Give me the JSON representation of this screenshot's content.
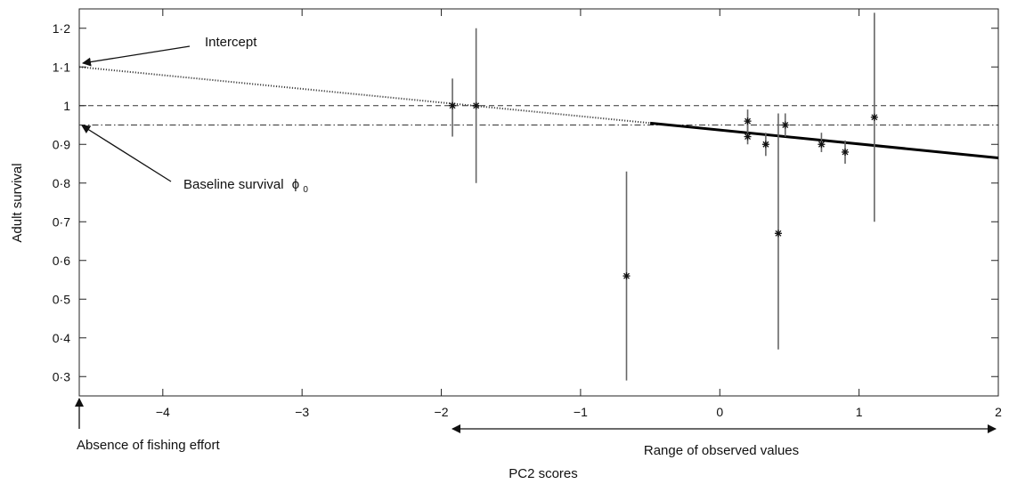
{
  "chart_data": {
    "type": "scatter",
    "xlabel": "PC2 scores",
    "ylabel": "Adult survival",
    "xlim": [
      -4.6,
      2.0
    ],
    "ylim": [
      0.25,
      1.25
    ],
    "x_ticks": [
      -4,
      -3,
      -2,
      -1,
      0,
      1,
      2
    ],
    "x_tick_labels": [
      "−4",
      "−3",
      "−2",
      "−1",
      "0",
      "1",
      "2"
    ],
    "y_ticks": [
      0.3,
      0.4,
      0.5,
      0.6,
      0.7,
      0.8,
      0.9,
      1.0,
      1.1,
      1.2
    ],
    "y_tick_labels": [
      "0·3",
      "0·4",
      "0·5",
      "0·6",
      "0·7",
      "0·8",
      "0·9",
      "1",
      "1·1",
      "1·2"
    ],
    "grid": false,
    "points": [
      {
        "x": -1.92,
        "y": 1.0,
        "low": 0.92,
        "high": 1.07
      },
      {
        "x": -1.75,
        "y": 1.0,
        "low": 0.8,
        "high": 1.2
      },
      {
        "x": -0.67,
        "y": 0.56,
        "low": 0.29,
        "high": 0.83
      },
      {
        "x": 0.2,
        "y": 0.96,
        "low": 0.93,
        "high": 0.99
      },
      {
        "x": 0.2,
        "y": 0.92,
        "low": 0.9,
        "high": 0.95
      },
      {
        "x": 0.33,
        "y": 0.9,
        "low": 0.87,
        "high": 0.93
      },
      {
        "x": 0.42,
        "y": 0.67,
        "low": 0.37,
        "high": 0.98
      },
      {
        "x": 0.47,
        "y": 0.95,
        "low": 0.92,
        "high": 0.98
      },
      {
        "x": 0.73,
        "y": 0.9,
        "low": 0.88,
        "high": 0.93
      },
      {
        "x": 0.9,
        "y": 0.88,
        "low": 0.85,
        "high": 0.91
      },
      {
        "x": 1.11,
        "y": 0.97,
        "low": 0.7,
        "high": 1.24
      }
    ],
    "reference_lines": [
      {
        "y": 1.0,
        "style": "dashed"
      },
      {
        "y": 0.95,
        "style": "dash-dot"
      }
    ],
    "regression": {
      "dotted": {
        "x": [
          -4.6,
          -0.5
        ],
        "y": [
          1.1,
          0.955
        ]
      },
      "solid": {
        "x": [
          -0.5,
          2.0
        ],
        "y": [
          0.955,
          0.865
        ]
      }
    },
    "range_arrow": {
      "x": [
        -1.8,
        1.95
      ]
    },
    "annotations": {
      "intercept": "Intercept",
      "baseline": "Baseline survival",
      "baseline_symbol": "ϕ",
      "baseline_subscript": "0",
      "absence": "Absence of fishing effort",
      "range": "Range of observed values"
    }
  }
}
